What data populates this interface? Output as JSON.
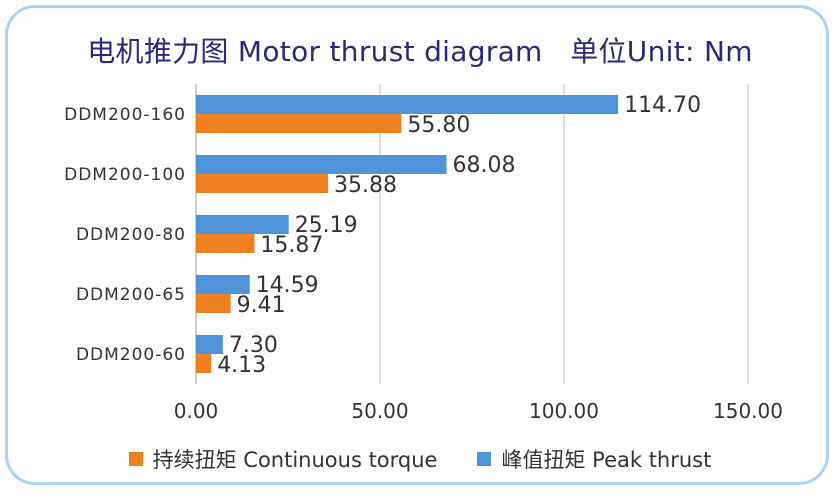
{
  "title": "电机推力图 Motor thrust diagram   单位Unit: Nm",
  "colors": {
    "continuous": "#f07f1f",
    "peak": "#4f93d8",
    "grid": "#d4d4d4",
    "text": "#333333",
    "title": "#2a2a7a",
    "border": "#a9d3f2"
  },
  "chart_data": {
    "type": "bar",
    "orientation": "horizontal",
    "categories": [
      "DDM200-160",
      "DDM200-100",
      "DDM200-80",
      "DDM200-65",
      "DDM200-60"
    ],
    "series": [
      {
        "name": "峰值扭矩 Peak thrust",
        "values": [
          114.7,
          68.08,
          25.19,
          14.59,
          7.3
        ]
      },
      {
        "name": "持续扭矩 Continuous torque",
        "values": [
          55.8,
          35.88,
          15.87,
          9.41,
          4.13
        ]
      }
    ],
    "data_labels": {
      "peak": [
        "114.70",
        "68.08",
        "25.19",
        "14.59",
        "7.30"
      ],
      "continuous": [
        "55.80",
        "35.88",
        "15.87",
        "9.41",
        "4.13"
      ]
    },
    "xticks": [
      "0.00",
      "50.00",
      "100.00",
      "150.00"
    ],
    "xtick_values": [
      0,
      50,
      100,
      150
    ],
    "xlim": [
      0,
      150
    ],
    "grid": true,
    "legend_position": "bottom"
  },
  "legend": [
    {
      "label": "持续扭矩 Continuous torque",
      "color": "#f07f1f"
    },
    {
      "label": "峰值扭矩 Peak thrust",
      "color": "#4f93d8"
    }
  ]
}
